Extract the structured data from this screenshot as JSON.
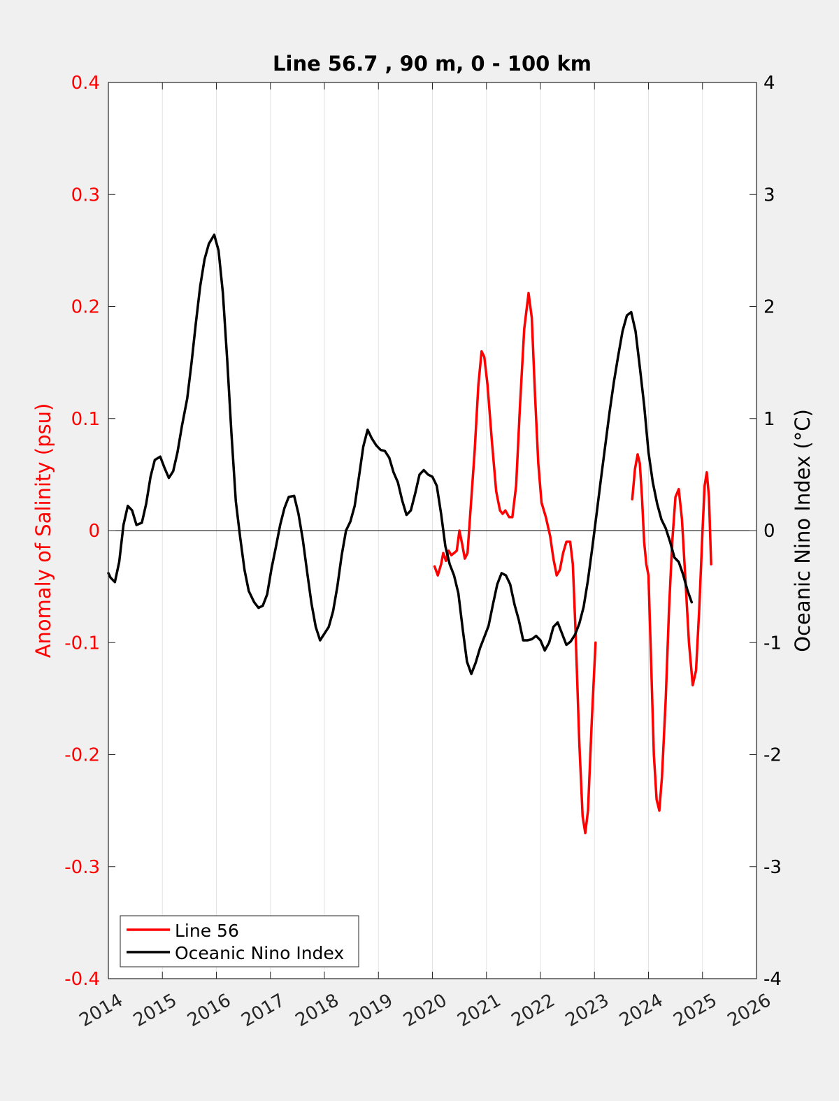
{
  "chart_data": {
    "type": "line",
    "title": "Line 56.7 , 90 m, 0 - 100 km",
    "xlabel": "",
    "xlim": [
      2014,
      2026
    ],
    "x_ticks": [
      "2014",
      "2015",
      "2016",
      "2017",
      "2018",
      "2019",
      "2020",
      "2021",
      "2022",
      "2023",
      "2024",
      "2025",
      "2026"
    ],
    "grid_x": true,
    "y_left": {
      "label": "Anomaly of Salinity (psu)",
      "lim": [
        -0.4,
        0.4
      ],
      "ticks": [
        "-0.4",
        "-0.3",
        "-0.2",
        "-0.1",
        "0",
        "0.1",
        "0.2",
        "0.3",
        "0.4"
      ],
      "color": "#ff0000"
    },
    "y_right": {
      "label": "Oceanic Nino Index (°C)",
      "lim": [
        -4,
        4
      ],
      "ticks": [
        "-4",
        "-3",
        "-2",
        "-1",
        "0",
        "1",
        "2",
        "3",
        "4"
      ],
      "color": "#000000"
    },
    "legend": {
      "position": "bottom-left"
    },
    "series": [
      {
        "name": "Line 56",
        "axis": "left",
        "color": "#ff0000",
        "segments": [
          [
            [
              2020.04,
              -0.032
            ],
            [
              2020.1,
              -0.04
            ],
            [
              2020.16,
              -0.03
            ],
            [
              2020.2,
              -0.02
            ],
            [
              2020.25,
              -0.027
            ],
            [
              2020.3,
              -0.018
            ],
            [
              2020.35,
              -0.022
            ],
            [
              2020.4,
              -0.02
            ],
            [
              2020.45,
              -0.018
            ],
            [
              2020.5,
              0.0
            ],
            [
              2020.55,
              -0.012
            ],
            [
              2020.6,
              -0.025
            ],
            [
              2020.65,
              -0.02
            ],
            [
              2020.7,
              0.015
            ],
            [
              2020.78,
              0.07
            ],
            [
              2020.85,
              0.13
            ],
            [
              2020.91,
              0.16
            ],
            [
              2020.96,
              0.155
            ],
            [
              2021.02,
              0.13
            ],
            [
              2021.1,
              0.08
            ],
            [
              2021.18,
              0.035
            ],
            [
              2021.25,
              0.018
            ],
            [
              2021.3,
              0.015
            ],
            [
              2021.35,
              0.018
            ],
            [
              2021.42,
              0.012
            ],
            [
              2021.48,
              0.012
            ],
            [
              2021.55,
              0.04
            ],
            [
              2021.62,
              0.11
            ],
            [
              2021.7,
              0.18
            ],
            [
              2021.78,
              0.212
            ],
            [
              2021.84,
              0.19
            ],
            [
              2021.9,
              0.12
            ],
            [
              2021.96,
              0.06
            ],
            [
              2022.02,
              0.025
            ],
            [
              2022.1,
              0.012
            ],
            [
              2022.18,
              -0.005
            ],
            [
              2022.24,
              -0.025
            ],
            [
              2022.3,
              -0.04
            ],
            [
              2022.36,
              -0.035
            ],
            [
              2022.42,
              -0.02
            ],
            [
              2022.48,
              -0.01
            ],
            [
              2022.55,
              -0.01
            ],
            [
              2022.6,
              -0.03
            ],
            [
              2022.65,
              -0.09
            ],
            [
              2022.72,
              -0.19
            ],
            [
              2022.78,
              -0.255
            ],
            [
              2022.83,
              -0.27
            ],
            [
              2022.88,
              -0.25
            ],
            [
              2022.95,
              -0.17
            ],
            [
              2023.02,
              -0.1
            ]
          ],
          [
            [
              2023.7,
              0.028
            ],
            [
              2023.75,
              0.055
            ],
            [
              2023.8,
              0.068
            ],
            [
              2023.84,
              0.06
            ],
            [
              2023.88,
              0.03
            ],
            [
              2023.92,
              -0.01
            ],
            [
              2023.96,
              -0.03
            ],
            [
              2024.0,
              -0.04
            ],
            [
              2024.05,
              -0.12
            ],
            [
              2024.1,
              -0.2
            ],
            [
              2024.15,
              -0.24
            ],
            [
              2024.2,
              -0.25
            ],
            [
              2024.25,
              -0.22
            ],
            [
              2024.32,
              -0.15
            ],
            [
              2024.38,
              -0.07
            ],
            [
              2024.44,
              -0.01
            ],
            [
              2024.5,
              0.03
            ],
            [
              2024.56,
              0.037
            ],
            [
              2024.62,
              0.01
            ],
            [
              2024.68,
              -0.04
            ],
            [
              2024.75,
              -0.1
            ],
            [
              2024.82,
              -0.138
            ],
            [
              2024.88,
              -0.125
            ],
            [
              2024.94,
              -0.07
            ],
            [
              2025.0,
              0.0
            ],
            [
              2025.04,
              0.04
            ],
            [
              2025.08,
              0.052
            ],
            [
              2025.12,
              0.03
            ],
            [
              2025.16,
              -0.03
            ]
          ]
        ]
      },
      {
        "name": "Oceanic Nino Index",
        "axis": "right",
        "color": "#000000",
        "points": [
          [
            2014.0,
            -0.38
          ],
          [
            2014.04,
            -0.42
          ],
          [
            2014.12,
            -0.46
          ],
          [
            2014.2,
            -0.28
          ],
          [
            2014.28,
            0.05
          ],
          [
            2014.36,
            0.22
          ],
          [
            2014.44,
            0.18
          ],
          [
            2014.52,
            0.05
          ],
          [
            2014.62,
            0.07
          ],
          [
            2014.7,
            0.24
          ],
          [
            2014.78,
            0.48
          ],
          [
            2014.86,
            0.63
          ],
          [
            2014.96,
            0.66
          ],
          [
            2015.04,
            0.56
          ],
          [
            2015.12,
            0.47
          ],
          [
            2015.2,
            0.53
          ],
          [
            2015.28,
            0.7
          ],
          [
            2015.36,
            0.93
          ],
          [
            2015.46,
            1.18
          ],
          [
            2015.54,
            1.5
          ],
          [
            2015.62,
            1.85
          ],
          [
            2015.7,
            2.18
          ],
          [
            2015.78,
            2.42
          ],
          [
            2015.86,
            2.56
          ],
          [
            2015.96,
            2.64
          ],
          [
            2016.04,
            2.5
          ],
          [
            2016.12,
            2.12
          ],
          [
            2016.2,
            1.52
          ],
          [
            2016.28,
            0.86
          ],
          [
            2016.36,
            0.26
          ],
          [
            2016.44,
            -0.06
          ],
          [
            2016.52,
            -0.35
          ],
          [
            2016.6,
            -0.54
          ],
          [
            2016.7,
            -0.64
          ],
          [
            2016.78,
            -0.69
          ],
          [
            2016.86,
            -0.67
          ],
          [
            2016.94,
            -0.57
          ],
          [
            2017.02,
            -0.34
          ],
          [
            2017.1,
            -0.15
          ],
          [
            2017.18,
            0.05
          ],
          [
            2017.26,
            0.2
          ],
          [
            2017.34,
            0.3
          ],
          [
            2017.44,
            0.31
          ],
          [
            2017.52,
            0.15
          ],
          [
            2017.6,
            -0.08
          ],
          [
            2017.68,
            -0.37
          ],
          [
            2017.76,
            -0.65
          ],
          [
            2017.84,
            -0.86
          ],
          [
            2017.92,
            -0.98
          ],
          [
            2018.0,
            -0.92
          ],
          [
            2018.08,
            -0.86
          ],
          [
            2018.16,
            -0.72
          ],
          [
            2018.24,
            -0.5
          ],
          [
            2018.32,
            -0.22
          ],
          [
            2018.4,
            0.0
          ],
          [
            2018.48,
            0.08
          ],
          [
            2018.56,
            0.22
          ],
          [
            2018.64,
            0.48
          ],
          [
            2018.72,
            0.75
          ],
          [
            2018.8,
            0.9
          ],
          [
            2018.88,
            0.82
          ],
          [
            2018.96,
            0.76
          ],
          [
            2019.04,
            0.72
          ],
          [
            2019.12,
            0.71
          ],
          [
            2019.2,
            0.65
          ],
          [
            2019.28,
            0.52
          ],
          [
            2019.36,
            0.43
          ],
          [
            2019.44,
            0.27
          ],
          [
            2019.52,
            0.14
          ],
          [
            2019.6,
            0.18
          ],
          [
            2019.68,
            0.33
          ],
          [
            2019.76,
            0.5
          ],
          [
            2019.84,
            0.54
          ],
          [
            2019.92,
            0.5
          ],
          [
            2020.0,
            0.48
          ],
          [
            2020.08,
            0.4
          ],
          [
            2020.16,
            0.15
          ],
          [
            2020.24,
            -0.14
          ],
          [
            2020.32,
            -0.3
          ],
          [
            2020.4,
            -0.4
          ],
          [
            2020.48,
            -0.56
          ],
          [
            2020.56,
            -0.88
          ],
          [
            2020.64,
            -1.17
          ],
          [
            2020.72,
            -1.28
          ],
          [
            2020.8,
            -1.18
          ],
          [
            2020.88,
            -1.05
          ],
          [
            2020.96,
            -0.95
          ],
          [
            2021.04,
            -0.85
          ],
          [
            2021.12,
            -0.66
          ],
          [
            2021.2,
            -0.48
          ],
          [
            2021.28,
            -0.38
          ],
          [
            2021.36,
            -0.4
          ],
          [
            2021.44,
            -0.48
          ],
          [
            2021.52,
            -0.66
          ],
          [
            2021.6,
            -0.8
          ],
          [
            2021.68,
            -0.98
          ],
          [
            2021.76,
            -0.98
          ],
          [
            2021.84,
            -0.97
          ],
          [
            2021.92,
            -0.94
          ],
          [
            2022.0,
            -0.98
          ],
          [
            2022.08,
            -1.07
          ],
          [
            2022.16,
            -1.0
          ],
          [
            2022.24,
            -0.86
          ],
          [
            2022.32,
            -0.82
          ],
          [
            2022.4,
            -0.92
          ],
          [
            2022.48,
            -1.02
          ],
          [
            2022.56,
            -0.99
          ],
          [
            2022.64,
            -0.93
          ],
          [
            2022.72,
            -0.83
          ],
          [
            2022.8,
            -0.68
          ],
          [
            2022.88,
            -0.44
          ],
          [
            2022.96,
            -0.15
          ],
          [
            2023.04,
            0.15
          ],
          [
            2023.12,
            0.46
          ],
          [
            2023.2,
            0.76
          ],
          [
            2023.28,
            1.06
          ],
          [
            2023.36,
            1.33
          ],
          [
            2023.44,
            1.56
          ],
          [
            2023.52,
            1.78
          ],
          [
            2023.6,
            1.92
          ],
          [
            2023.68,
            1.95
          ],
          [
            2023.76,
            1.78
          ],
          [
            2023.84,
            1.46
          ],
          [
            2023.92,
            1.12
          ],
          [
            2024.0,
            0.7
          ],
          [
            2024.08,
            0.43
          ],
          [
            2024.16,
            0.24
          ],
          [
            2024.24,
            0.1
          ],
          [
            2024.32,
            0.02
          ],
          [
            2024.4,
            -0.1
          ],
          [
            2024.48,
            -0.24
          ],
          [
            2024.56,
            -0.28
          ],
          [
            2024.64,
            -0.39
          ],
          [
            2024.72,
            -0.53
          ],
          [
            2024.8,
            -0.64
          ]
        ]
      }
    ]
  }
}
